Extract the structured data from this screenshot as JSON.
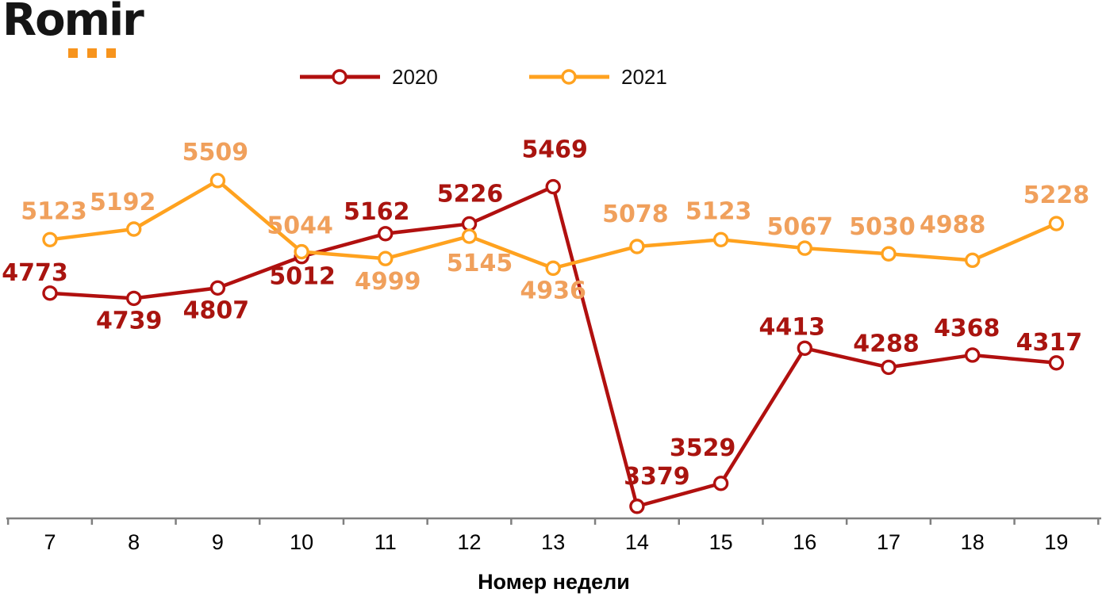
{
  "logo": {
    "text": "Romir",
    "accent_color": "#F7941D",
    "text_color": "#151515"
  },
  "legend": {
    "items": [
      {
        "label": "2020"
      },
      {
        "label": "2021"
      }
    ]
  },
  "chart_data": {
    "type": "line",
    "title": "",
    "xlabel": "Номер недели",
    "ylabel": "",
    "categories": [
      "7",
      "8",
      "9",
      "10",
      "11",
      "12",
      "13",
      "14",
      "15",
      "16",
      "17",
      "18",
      "19"
    ],
    "series": [
      {
        "name": "2020",
        "color": "#B1100F",
        "label_color": "#A9140F",
        "values": [
          4773,
          4739,
          4807,
          5012,
          5162,
          5226,
          5469,
          3379,
          3529,
          4413,
          4288,
          4368,
          4317
        ]
      },
      {
        "name": "2021",
        "color": "#FFA21F",
        "label_color": "#F0A05C",
        "values": [
          5123,
          5192,
          5509,
          5044,
          4999,
          5145,
          4936,
          5078,
          5123,
          5067,
          5030,
          4988,
          5228
        ]
      }
    ],
    "ylim": [
      3300,
      5560
    ],
    "axis_color": "#7F7F7F",
    "marker": "open-circle",
    "marker_fill": "#FFFFFF",
    "grid": false,
    "data_labels": true,
    "legend_position": "top",
    "y_axis_visible": false
  }
}
